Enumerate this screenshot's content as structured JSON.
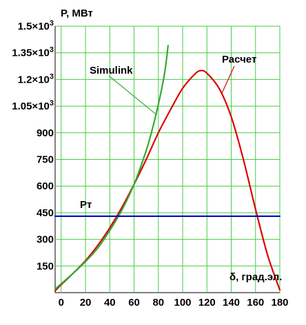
{
  "chart_data": {
    "type": "line",
    "ylabel": "P, МВт",
    "xlabel": "δ, град.эл.",
    "xlim": [
      -5,
      180
    ],
    "ylim": [
      0,
      1500
    ],
    "x_ticks": [
      "0",
      "20",
      "40",
      "60",
      "80",
      "100",
      "120",
      "140",
      "160",
      "180"
    ],
    "x_tick_values": [
      0,
      20,
      40,
      60,
      80,
      100,
      120,
      140,
      160,
      180
    ],
    "y_ticks": [
      {
        "value": 1500,
        "base": "1.5×10",
        "exp": "3"
      },
      {
        "value": 1350,
        "base": "1.35×10",
        "exp": "3"
      },
      {
        "value": 1200,
        "base": "1.2×10",
        "exp": "3"
      },
      {
        "value": 1050,
        "base": "1.05×10",
        "exp": "3"
      },
      {
        "value": 900,
        "base": "900",
        "exp": ""
      },
      {
        "value": 750,
        "base": "750",
        "exp": ""
      },
      {
        "value": 600,
        "base": "600",
        "exp": ""
      },
      {
        "value": 450,
        "base": "450",
        "exp": ""
      },
      {
        "value": 300,
        "base": "300",
        "exp": ""
      },
      {
        "value": 150,
        "base": "150",
        "exp": ""
      }
    ],
    "grid": true,
    "series": [
      {
        "name": "Расчет",
        "color": "#dd0000",
        "x": [
          -5,
          0,
          10,
          20,
          30,
          40,
          50,
          60,
          70,
          80,
          90,
          100,
          110,
          115,
          120,
          130,
          140,
          150,
          160,
          170,
          180
        ],
        "y": [
          10,
          45,
          110,
          180,
          265,
          365,
          480,
          610,
          750,
          900,
          1030,
          1150,
          1230,
          1250,
          1235,
          1150,
          990,
          750,
          470,
          210,
          15
        ]
      },
      {
        "name": "Simulink",
        "color": "#33aa33",
        "x": [
          -5,
          0,
          10,
          20,
          30,
          40,
          50,
          60,
          70,
          75,
          80,
          85,
          88
        ],
        "y": [
          20,
          50,
          110,
          175,
          250,
          350,
          465,
          610,
          800,
          920,
          1060,
          1230,
          1390
        ]
      },
      {
        "name": "Pт",
        "color": "#0000cc",
        "x": [
          -5,
          180
        ],
        "y": [
          430,
          430
        ]
      }
    ],
    "annotations": [
      {
        "text": "Simulink",
        "target_series": 1,
        "target_x": 78
      },
      {
        "text": "Расчет",
        "target_series": 0,
        "target_x": 132
      },
      {
        "text": "Pт"
      }
    ]
  }
}
